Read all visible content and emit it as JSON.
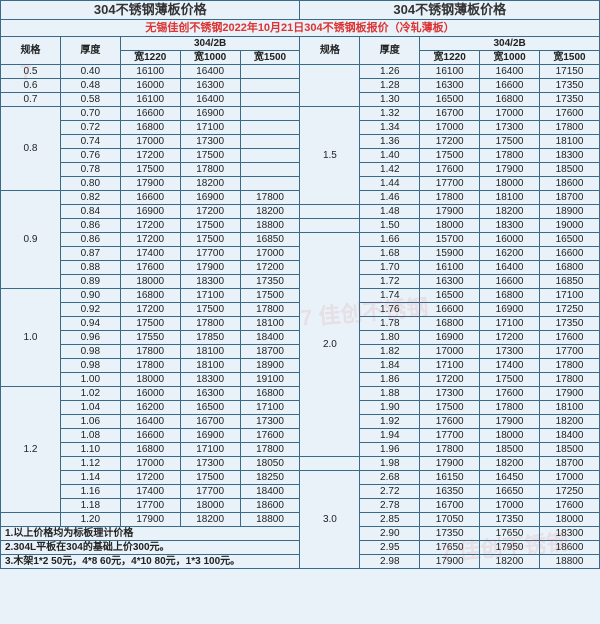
{
  "title": "304不锈钢薄板价格",
  "subtitle": "无锡佳创不锈钢2022年10月21日304不锈钢板报价（冷轧薄板）",
  "hdr": {
    "spec": "规格",
    "thick": "厚度",
    "grp": "304/2B",
    "w12": "宽1220",
    "w10": "宽1000",
    "w15": "宽1500"
  },
  "notes": [
    "1.以上价格均为标板理计价格",
    "2.304L平板在304的基础上价300元。",
    "3.木架1*2 50元，4*8 60元，4*10 80元，1*3 100元。"
  ],
  "L": [
    {
      "s": "0.5",
      "t": "0.40",
      "a": "16100",
      "b": "16400",
      "c": ""
    },
    {
      "s": "0.6",
      "t": "0.48",
      "a": "16000",
      "b": "16300",
      "c": ""
    },
    {
      "s": "0.7",
      "t": "0.58",
      "a": "16100",
      "b": "16400",
      "c": ""
    },
    {
      "s": "0.8",
      "rs": 6,
      "t": "0.70",
      "a": "16600",
      "b": "16900",
      "c": ""
    },
    {
      "t": "0.72",
      "a": "16800",
      "b": "17100",
      "c": ""
    },
    {
      "t": "0.74",
      "a": "17000",
      "b": "17300",
      "c": ""
    },
    {
      "t": "0.76",
      "a": "17200",
      "b": "17500",
      "c": ""
    },
    {
      "t": "0.78",
      "a": "17500",
      "b": "17800",
      "c": ""
    },
    {
      "t": "0.80",
      "a": "17900",
      "b": "18200",
      "c": ""
    },
    {
      "s": "0.9",
      "rs": 7,
      "t": "0.82",
      "a": "16600",
      "b": "16900",
      "c": "17800"
    },
    {
      "t": "0.84",
      "a": "16900",
      "b": "17200",
      "c": "18200"
    },
    {
      "t": "0.86",
      "a": "17200",
      "b": "17500",
      "c": "18800"
    },
    {
      "t": "0.86",
      "a": "17200",
      "b": "17500",
      "c": "16850"
    },
    {
      "t": "0.87",
      "a": "17400",
      "b": "17700",
      "c": "17000"
    },
    {
      "t": "0.88",
      "a": "17600",
      "b": "17900",
      "c": "17200"
    },
    {
      "t": "0.89",
      "a": "18000",
      "b": "18300",
      "c": "17350"
    },
    {
      "s": "1.0",
      "rs": 7,
      "t": "0.90",
      "a": "16800",
      "b": "17100",
      "c": "17500"
    },
    {
      "t": "0.92",
      "a": "17200",
      "b": "17500",
      "c": "17800"
    },
    {
      "t": "0.94",
      "a": "17500",
      "b": "17800",
      "c": "18100"
    },
    {
      "t": "0.96",
      "a": "17550",
      "b": "17850",
      "c": "18400"
    },
    {
      "t": "0.98",
      "a": "17800",
      "b": "18100",
      "c": "18700"
    },
    {
      "t": "0.98",
      "a": "17800",
      "b": "18100",
      "c": "18900"
    },
    {
      "t": "1.00",
      "a": "18000",
      "b": "18300",
      "c": "19100"
    },
    {
      "s": "1.2",
      "rs": 9,
      "t": "1.02",
      "a": "16000",
      "b": "16300",
      "c": "16800"
    },
    {
      "t": "1.04",
      "a": "16200",
      "b": "16500",
      "c": "17100"
    },
    {
      "t": "1.06",
      "a": "16400",
      "b": "16700",
      "c": "17300"
    },
    {
      "t": "1.08",
      "a": "16600",
      "b": "16900",
      "c": "17600"
    },
    {
      "t": "1.10",
      "a": "16800",
      "b": "17100",
      "c": "17800"
    },
    {
      "t": "1.12",
      "a": "17000",
      "b": "17300",
      "c": "18050"
    },
    {
      "t": "1.14",
      "a": "17200",
      "b": "17500",
      "c": "18250"
    },
    {
      "t": "1.16",
      "a": "17400",
      "b": "17700",
      "c": "18400"
    },
    {
      "t": "1.18",
      "a": "17700",
      "b": "18000",
      "c": "18600"
    },
    {
      "t": "1.20",
      "a": "17900",
      "b": "18200",
      "c": "18800"
    }
  ],
  "R": [
    {
      "t": "1.26",
      "a": "16100",
      "b": "16400",
      "c": "17150"
    },
    {
      "t": "1.28",
      "a": "16300",
      "b": "16600",
      "c": "17350"
    },
    {
      "t": "1.30",
      "a": "16500",
      "b": "16800",
      "c": "17350"
    },
    {
      "s": "1.5",
      "rs": 7,
      "t": "1.32",
      "a": "16700",
      "b": "17000",
      "c": "17600"
    },
    {
      "t": "1.34",
      "a": "17000",
      "b": "17300",
      "c": "17800"
    },
    {
      "t": "1.36",
      "a": "17200",
      "b": "17500",
      "c": "18100"
    },
    {
      "t": "1.40",
      "a": "17500",
      "b": "17800",
      "c": "18300"
    },
    {
      "t": "1.42",
      "a": "17600",
      "b": "17900",
      "c": "18500"
    },
    {
      "t": "1.44",
      "a": "17700",
      "b": "18000",
      "c": "18600"
    },
    {
      "t": "1.46",
      "a": "17800",
      "b": "18100",
      "c": "18700"
    },
    {
      "t": "1.48",
      "a": "17900",
      "b": "18200",
      "c": "18900"
    },
    {
      "t": "1.50",
      "a": "18000",
      "b": "18300",
      "c": "19000"
    },
    {
      "s": "2.0",
      "rs": 16,
      "t": "1.66",
      "a": "15700",
      "b": "16000",
      "c": "16500"
    },
    {
      "t": "1.68",
      "a": "15900",
      "b": "16200",
      "c": "16600"
    },
    {
      "t": "1.70",
      "a": "16100",
      "b": "16400",
      "c": "16800"
    },
    {
      "t": "1.72",
      "a": "16300",
      "b": "16600",
      "c": "16850"
    },
    {
      "t": "1.74",
      "a": "16500",
      "b": "16800",
      "c": "17100"
    },
    {
      "t": "1.76",
      "a": "16600",
      "b": "16900",
      "c": "17250"
    },
    {
      "t": "1.78",
      "a": "16800",
      "b": "17100",
      "c": "17350"
    },
    {
      "t": "1.80",
      "a": "16900",
      "b": "17200",
      "c": "17600"
    },
    {
      "t": "1.82",
      "a": "17000",
      "b": "17300",
      "c": "17700"
    },
    {
      "t": "1.84",
      "a": "17100",
      "b": "17400",
      "c": "17800"
    },
    {
      "t": "1.86",
      "a": "17200",
      "b": "17500",
      "c": "17800"
    },
    {
      "t": "1.88",
      "a": "17300",
      "b": "17600",
      "c": "17900"
    },
    {
      "t": "1.90",
      "a": "17500",
      "b": "17800",
      "c": "18100"
    },
    {
      "t": "1.92",
      "a": "17600",
      "b": "17900",
      "c": "18200"
    },
    {
      "t": "1.94",
      "a": "17700",
      "b": "18000",
      "c": "18400"
    },
    {
      "t": "1.96",
      "a": "17800",
      "b": "18500",
      "c": "18500"
    },
    {
      "t": "1.98",
      "a": "17900",
      "b": "18200",
      "c": "18700"
    },
    {
      "s": "3.0",
      "rs": 8,
      "t": "2.68",
      "a": "16150",
      "b": "16450",
      "c": "17000"
    },
    {
      "t": "2.72",
      "a": "16350",
      "b": "16650",
      "c": "17250"
    },
    {
      "t": "2.78",
      "a": "16700",
      "b": "17000",
      "c": "17600"
    },
    {
      "t": "2.85",
      "a": "17050",
      "b": "17350",
      "c": "18000"
    },
    {
      "t": "2.90",
      "a": "17350",
      "b": "17650",
      "c": "18300"
    },
    {
      "t": "2.95",
      "a": "17650",
      "b": "17950",
      "c": "18600"
    },
    {
      "t": "2.98",
      "a": "17900",
      "b": "18200",
      "c": "18800"
    }
  ]
}
